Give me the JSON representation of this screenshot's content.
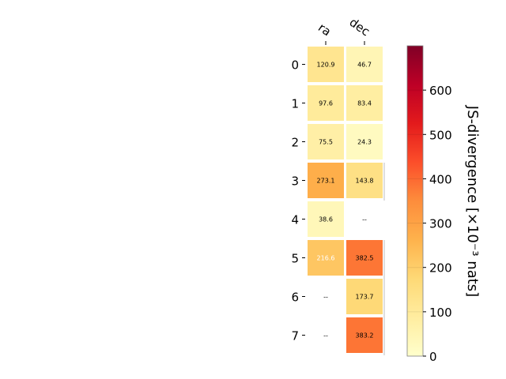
{
  "chart_data": {
    "type": "heatmap",
    "columns": [
      "ra",
      "dec"
    ],
    "rows": [
      "0",
      "1",
      "2",
      "3",
      "4",
      "5",
      "6",
      "7"
    ],
    "values": [
      [
        120.9,
        46.7
      ],
      [
        97.6,
        83.4
      ],
      [
        75.5,
        24.3
      ],
      [
        273.1,
        143.8
      ],
      [
        38.6,
        null
      ],
      [
        216.6,
        382.5
      ],
      [
        null,
        173.7
      ],
      [
        null,
        383.2
      ]
    ],
    "cell_labels": [
      [
        "120.9",
        "46.7"
      ],
      [
        "97.6",
        "83.4"
      ],
      [
        "75.5",
        "24.3"
      ],
      [
        "273.1",
        "143.8"
      ],
      [
        "38.6",
        "--"
      ],
      [
        "216.6",
        "382.5"
      ],
      [
        "--",
        "173.7"
      ],
      [
        "--",
        "383.2"
      ]
    ],
    "colorbar": {
      "label": "JS-divergence [×10⁻³ nats]",
      "range": [
        0,
        700
      ],
      "ticks": [
        0,
        100,
        200,
        300,
        400,
        500,
        600
      ],
      "colormap": "YlOrRd"
    }
  }
}
